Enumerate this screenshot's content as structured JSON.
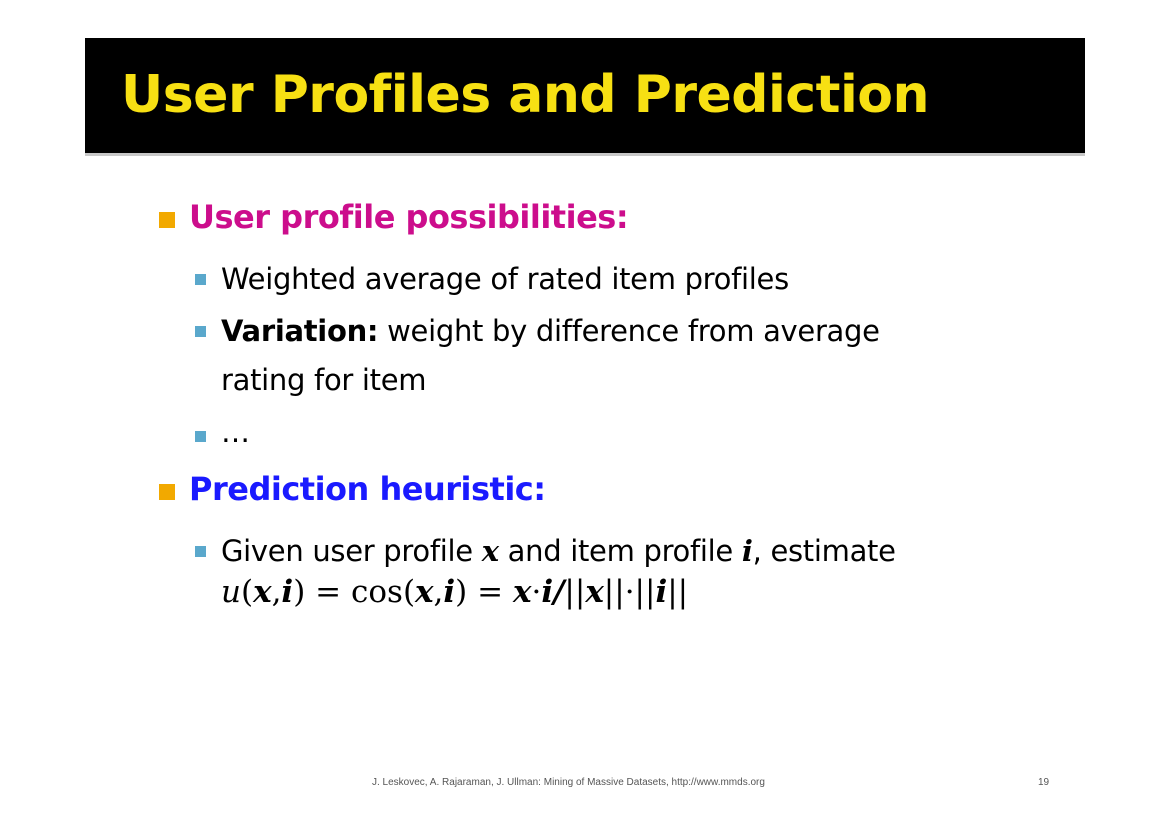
{
  "colors": {
    "title": "#f7e013",
    "heading1": "#cc0d8c",
    "heading2": "#1a1aff",
    "bullet_l1": "#f2a900",
    "bullet_l2": "#5aa8cc",
    "title_bg": "#000000"
  },
  "slide": {
    "title": "User Profiles and Prediction"
  },
  "section1": {
    "heading": "User profile possibilities:",
    "items": [
      {
        "text": "Weighted average of rated item profiles"
      },
      {
        "bold": "Variation:",
        "text": " weight by difference from average",
        "cont": "rating for item"
      },
      {
        "text": "…"
      }
    ]
  },
  "section2": {
    "heading": "Prediction heuristic:",
    "item": {
      "pre": "Given user profile ",
      "var_x": "x",
      "mid": " and item profile ",
      "var_i": "i",
      "post": ", estimate"
    },
    "formula": {
      "u": "u",
      "open": "(",
      "x": "x",
      "comma": ",",
      "i": "i",
      "close": ")",
      "eq": " = ",
      "cos": "cos",
      "dot": "·",
      "slash": "/",
      "bars_open": "||",
      "bars_close": "||"
    }
  },
  "footer": {
    "citation": "J. Leskovec, A. Rajaraman, J. Ullman: Mining of Massive Datasets, http://www.mmds.org",
    "page_number": "19"
  }
}
